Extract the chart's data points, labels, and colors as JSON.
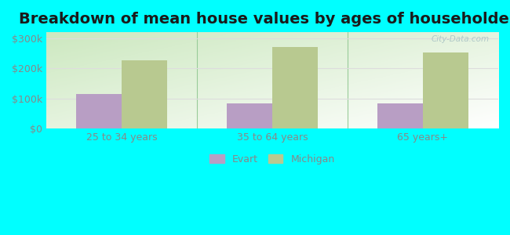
{
  "title": "Breakdown of mean house values by ages of householders",
  "categories": [
    "25 to 34 years",
    "35 to 64 years",
    "65 years+"
  ],
  "evart_values": [
    115000,
    85000,
    83000
  ],
  "michigan_values": [
    228000,
    270000,
    252000
  ],
  "evart_color": "#b89ec4",
  "michigan_color": "#b8c990",
  "ylim": [
    0,
    320000
  ],
  "ytick_values": [
    0,
    100000,
    200000,
    300000
  ],
  "ytick_labels": [
    "$0",
    "$100k",
    "$200k",
    "$300k"
  ],
  "background_color": "#00ffff",
  "grad_top": "#cce8c0",
  "grad_bottom": "#f0fff0",
  "title_fontsize": 14,
  "legend_labels": [
    "Evart",
    "Michigan"
  ],
  "bar_width": 0.3,
  "grid_color": "#dddddd",
  "tick_label_color": "#888888",
  "watermark": "City-Data.com",
  "separator_color": "#99cc99"
}
